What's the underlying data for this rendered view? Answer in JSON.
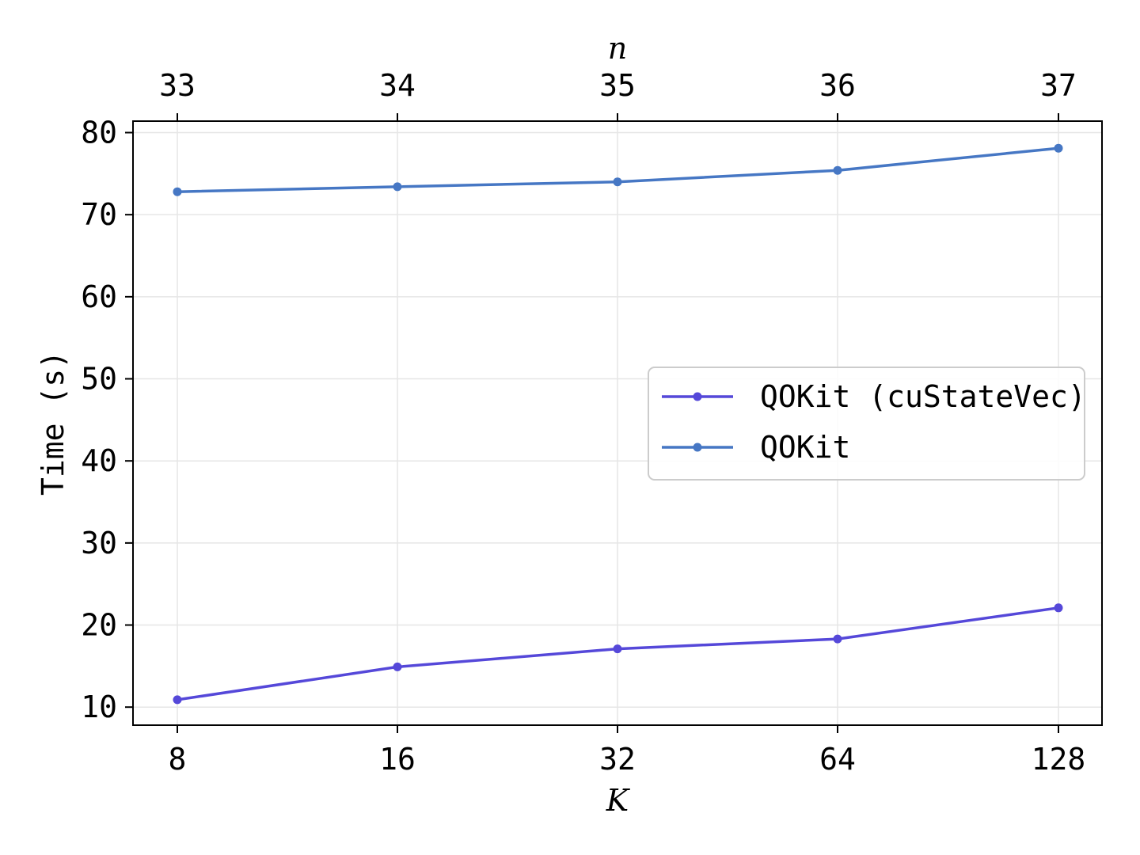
{
  "chart_data": {
    "type": "line",
    "categories": [
      "8",
      "16",
      "32",
      "64",
      "128"
    ],
    "top_categories": [
      "33",
      "34",
      "35",
      "36",
      "37"
    ],
    "xlabel": "K",
    "top_xlabel": "n",
    "ylabel": "Time (s)",
    "ylim": [
      7.8,
      81.4
    ],
    "yticks": [
      "10",
      "20",
      "30",
      "40",
      "50",
      "60",
      "70",
      "80"
    ],
    "grid": true,
    "legend_position": "center-right",
    "series": [
      {
        "name": "QOKit (cuStateVec)",
        "color": "#5548d9",
        "values": [
          10.9,
          14.9,
          17.1,
          18.3,
          22.1
        ]
      },
      {
        "name": "QOKit",
        "color": "#4677c4",
        "values": [
          72.8,
          73.4,
          74.0,
          75.4,
          78.1
        ]
      }
    ]
  }
}
